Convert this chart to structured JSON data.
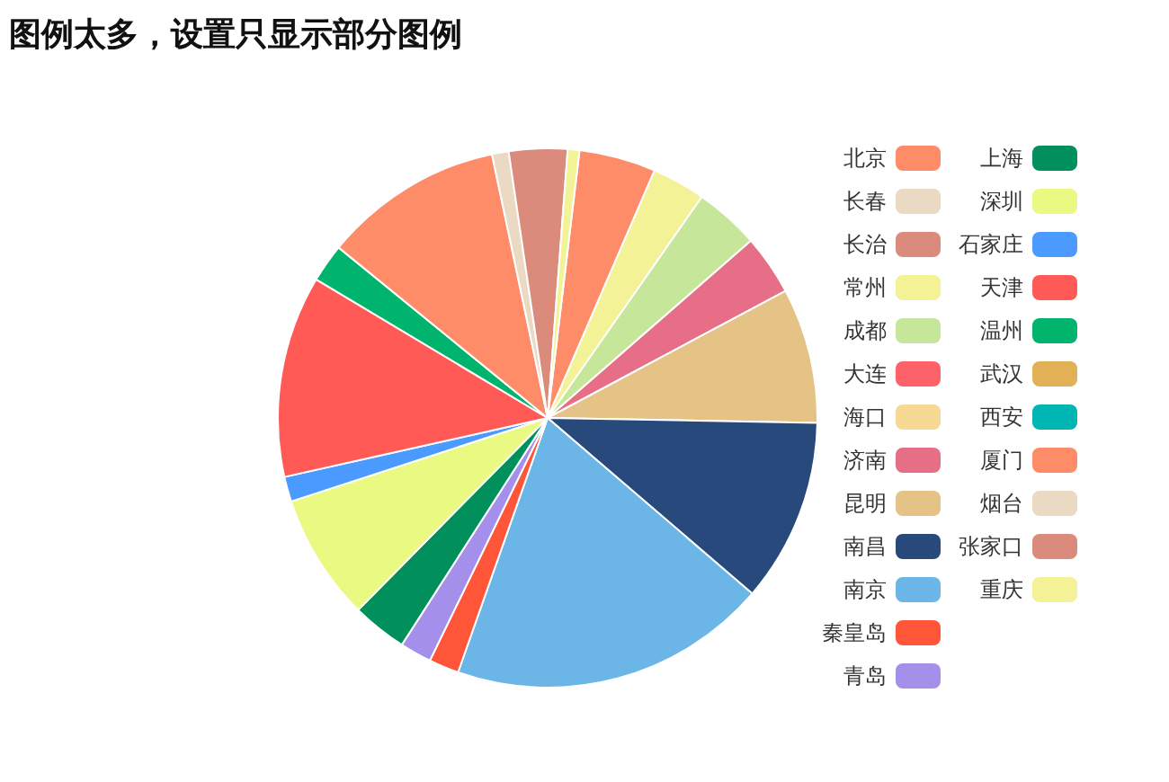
{
  "chart_data": {
    "type": "pie",
    "title": "图例太多，设置只显示部分图例",
    "categories": [
      "北京",
      "长春",
      "长治",
      "常州",
      "成都",
      "大连",
      "海口",
      "济南",
      "昆明",
      "南昌",
      "南京",
      "秦皇岛",
      "青岛",
      "上海",
      "深圳",
      "石家庄",
      "天津",
      "温州",
      "武汉",
      "西安",
      "厦门",
      "烟台",
      "张家口",
      "重庆"
    ],
    "values": [
      4.6,
      0,
      0,
      3.2,
      3.9,
      0,
      0,
      3.6,
      8.1,
      11.0,
      19.1,
      1.8,
      1.9,
      3.3,
      7.6,
      1.5,
      12.1,
      2.3,
      0,
      0,
      10.8,
      1.0,
      3.5,
      0.7
    ],
    "colors": [
      "#fe8c68",
      "#ebd9c3",
      "#db8b7c",
      "#f3f297",
      "#c6e69a",
      "#ff6169",
      "#f7d994",
      "#e66e86",
      "#e5c387",
      "#27497b",
      "#6bb6e6",
      "#ff5538",
      "#a48fea",
      "#018f5b",
      "#e9f982",
      "#4b9aff",
      "#ff5a55",
      "#00b46d",
      "#e2b055",
      "#00b6b5",
      "#fe8c68",
      "#ebd9c3",
      "#db8b7c",
      "#f3f297"
    ],
    "legend": "right"
  }
}
